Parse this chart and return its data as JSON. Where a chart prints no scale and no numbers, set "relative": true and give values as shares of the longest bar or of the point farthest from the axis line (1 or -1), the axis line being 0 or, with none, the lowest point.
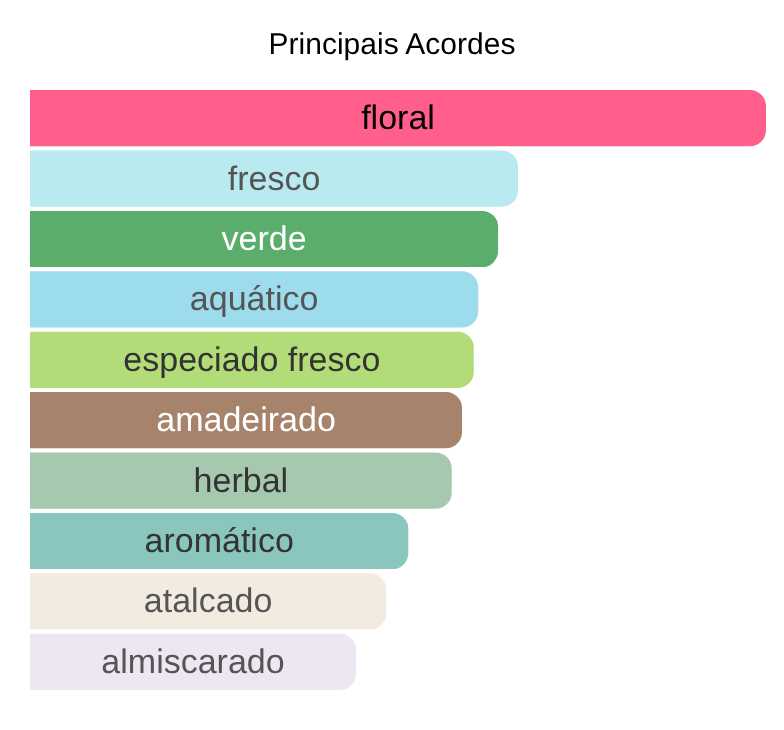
{
  "chart_data": {
    "type": "bar",
    "title": "Principais Acordes",
    "orientation": "horizontal",
    "relative": true,
    "categories": [
      "floral",
      "fresco",
      "verde",
      "aquático",
      "especiado fresco",
      "amadeirado",
      "herbal",
      "aromático",
      "atalcado",
      "almiscarado"
    ],
    "values": [
      1,
      0.663,
      0.636,
      0.609,
      0.603,
      0.587,
      0.573,
      0.514,
      0.484,
      0.443
    ],
    "colors": [
      "#ff5f8a",
      "#b8eaf0",
      "#5aad6a",
      "#9ddcec",
      "#b2dc78",
      "#a6836a",
      "#a5c8ae",
      "#8ac6be",
      "#f3ebe0",
      "#efe6f3"
    ]
  }
}
